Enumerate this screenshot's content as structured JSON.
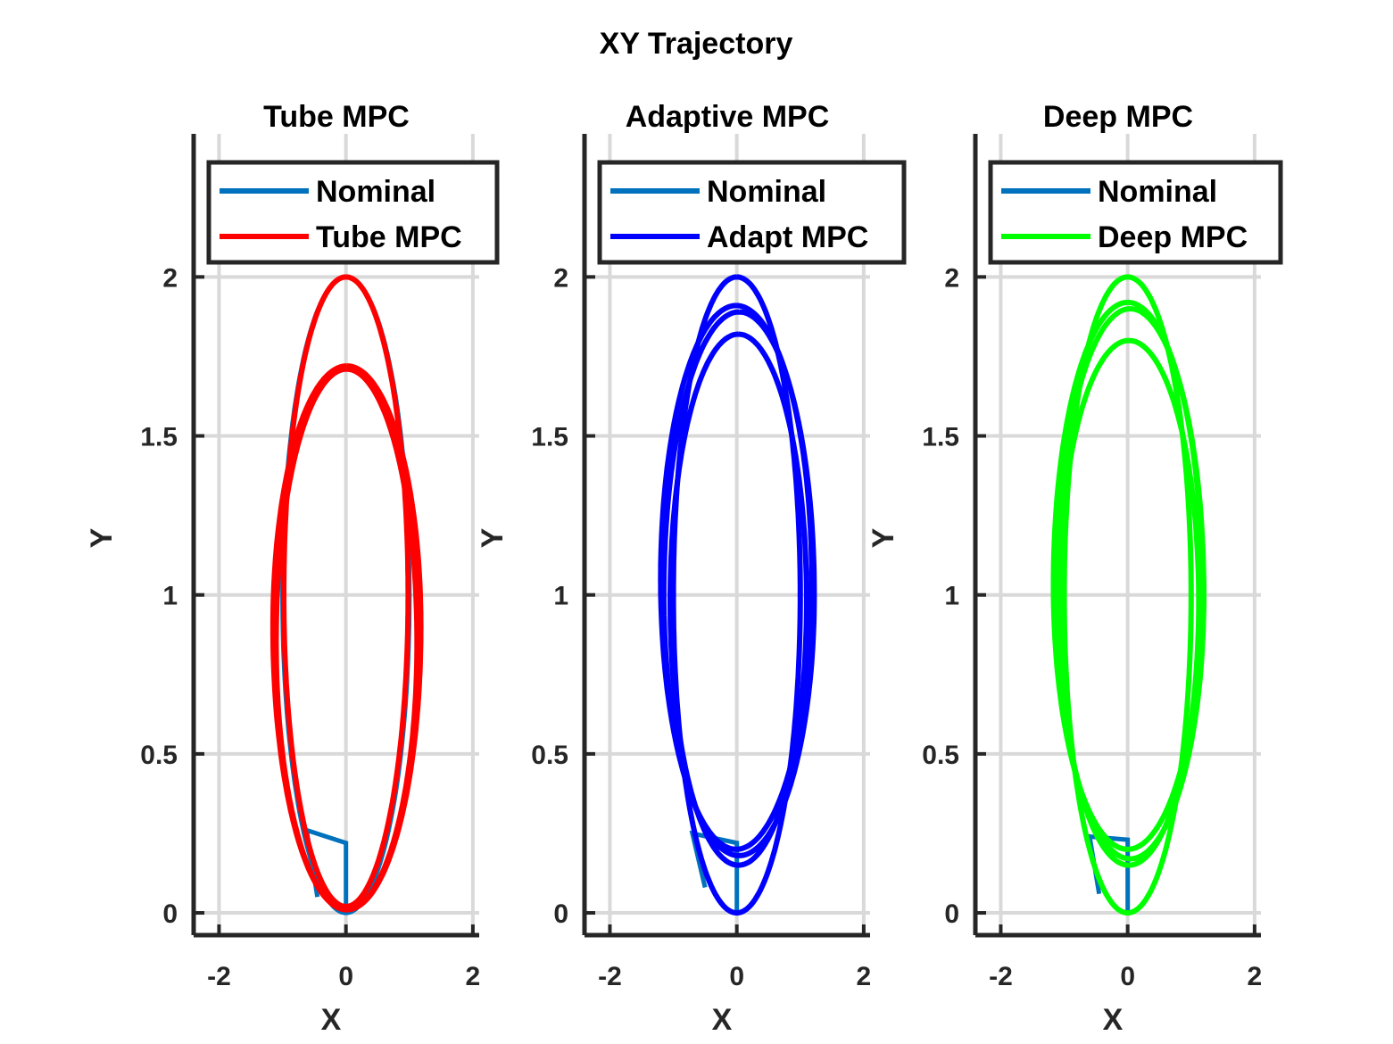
{
  "figure": {
    "title": "XY Trajectory"
  },
  "colors": {
    "nominal": "#0072BD",
    "tube": "#FF0000",
    "adaptive": "#0000FF",
    "deep": "#00FF00",
    "axis": "#262626",
    "grid": "#D9D9D9"
  },
  "chart_data": [
    {
      "type": "line",
      "title": "Tube MPC",
      "xlabel": "X",
      "ylabel": "Y",
      "xlim": [
        -2.4,
        2.1
      ],
      "ylim": [
        -0.07,
        2.45
      ],
      "xticks": [
        -2,
        0,
        2
      ],
      "yticks": [
        0,
        0.5,
        1,
        1.5,
        2
      ],
      "xtick_labels": [
        "-2",
        "0",
        "2"
      ],
      "ytick_labels": [
        "0",
        "0.5",
        "1",
        "1.5",
        "2"
      ],
      "grid": true,
      "legend": {
        "location": "top",
        "entries": [
          "Nominal",
          "Tube MPC"
        ]
      },
      "series": [
        {
          "name": "Nominal",
          "color": "#0072BD",
          "shape": "ellipse",
          "center": [
            0,
            1
          ],
          "radii": [
            1,
            1
          ],
          "extra_path": [
            [
              0,
              0.01
            ],
            [
              0,
              0.22
            ],
            [
              -0.62,
              0.26
            ],
            [
              -0.45,
              0.05
            ]
          ]
        },
        {
          "name": "Tube MPC",
          "color": "#FF0000",
          "shape": "drift-loops",
          "loops": [
            {
              "top": 2.0,
              "bottom": 0.02,
              "left": -0.98,
              "right": 0.98,
              "center_y": 1.0
            },
            {
              "top": 1.72,
              "bottom": 0.01,
              "left": -1.15,
              "right": 1.18,
              "center_y": 0.9
            },
            {
              "top": 1.71,
              "bottom": 0.01,
              "left": -1.1,
              "right": 1.12,
              "center_y": 0.85
            }
          ]
        }
      ]
    },
    {
      "type": "line",
      "title": "Adaptive MPC",
      "xlabel": "X",
      "ylabel": "Y",
      "xlim": [
        -2.4,
        2.1
      ],
      "ylim": [
        -0.07,
        2.45
      ],
      "xticks": [
        -2,
        0,
        2
      ],
      "yticks": [
        0,
        0.5,
        1,
        1.5,
        2
      ],
      "xtick_labels": [
        "-2",
        "0",
        "2"
      ],
      "ytick_labels": [
        "0",
        "0.5",
        "1",
        "1.5",
        "2"
      ],
      "grid": true,
      "legend": {
        "location": "top",
        "entries": [
          "Nominal",
          "Adapt MPC"
        ]
      },
      "series": [
        {
          "name": "Nominal",
          "color": "#0072BD",
          "shape": "ellipse",
          "center": [
            0,
            1
          ],
          "radii": [
            1,
            1
          ],
          "extra_path": [
            [
              0,
              0.0
            ],
            [
              0,
              0.22
            ],
            [
              -0.7,
              0.25
            ],
            [
              -0.5,
              0.08
            ]
          ]
        },
        {
          "name": "Adapt MPC",
          "color": "#0000FF",
          "shape": "drift-loops",
          "loops": [
            {
              "top": 2.0,
              "bottom": 0.0,
              "left": -1.0,
              "right": 1.0,
              "center_y": 1.0
            },
            {
              "top": 1.91,
              "bottom": 0.2,
              "left": -1.2,
              "right": 1.18,
              "center_y": 1.05
            },
            {
              "top": 1.89,
              "bottom": 0.18,
              "left": -1.15,
              "right": 1.22,
              "center_y": 1.0
            },
            {
              "top": 1.82,
              "bottom": 0.15,
              "left": -1.05,
              "right": 1.1,
              "center_y": 0.98
            }
          ]
        }
      ]
    },
    {
      "type": "line",
      "title": "Deep MPC",
      "xlabel": "X",
      "ylabel": "Y",
      "xlim": [
        -2.4,
        2.1
      ],
      "ylim": [
        -0.07,
        2.45
      ],
      "xticks": [
        -2,
        0,
        2
      ],
      "yticks": [
        0,
        0.5,
        1,
        1.5,
        2
      ],
      "xtick_labels": [
        "-2",
        "0",
        "2"
      ],
      "ytick_labels": [
        "0",
        "0.5",
        "1",
        "1.5",
        "2"
      ],
      "grid": true,
      "legend": {
        "location": "top",
        "entries": [
          "Nominal",
          "Deep MPC"
        ]
      },
      "series": [
        {
          "name": "Nominal",
          "color": "#0072BD",
          "shape": "ellipse",
          "center": [
            0,
            1
          ],
          "radii": [
            1,
            1
          ],
          "extra_path": [
            [
              0,
              0.0
            ],
            [
              0,
              0.23
            ],
            [
              -0.6,
              0.24
            ],
            [
              -0.45,
              0.06
            ]
          ]
        },
        {
          "name": "Deep MPC",
          "color": "#00FF00",
          "shape": "drift-loops",
          "loops": [
            {
              "top": 2.0,
              "bottom": 0.0,
              "left": -1.0,
              "right": 1.0,
              "center_y": 1.0
            },
            {
              "top": 1.92,
              "bottom": 0.2,
              "left": -1.17,
              "right": 1.17,
              "center_y": 1.03
            },
            {
              "top": 1.9,
              "bottom": 0.17,
              "left": -1.12,
              "right": 1.2,
              "center_y": 1.0
            },
            {
              "top": 1.8,
              "bottom": 0.15,
              "left": -1.08,
              "right": 1.12,
              "center_y": 0.98
            }
          ]
        }
      ]
    }
  ]
}
